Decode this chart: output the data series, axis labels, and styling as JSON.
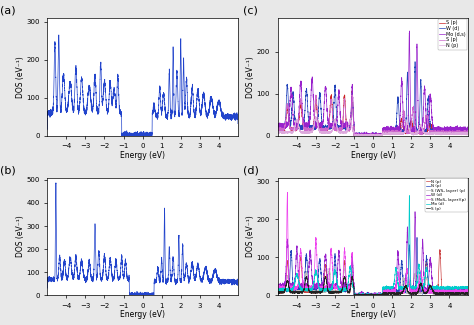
{
  "fig_width": 4.74,
  "fig_height": 3.25,
  "dpi": 100,
  "background_color": "#e8e8e8",
  "energy_range": [
    -5,
    5
  ],
  "panel_a": {
    "ylim": [
      0,
      310
    ],
    "yticks": [
      0,
      100,
      200,
      300
    ],
    "ylabel": "DOS (eV⁻¹)",
    "xlabel": "Energy (eV)",
    "line_color": "#2244cc",
    "line_color2": "#7799ee",
    "label": "(a)"
  },
  "panel_b": {
    "ylim": [
      0,
      510
    ],
    "yticks": [
      0,
      100,
      200,
      300,
      400,
      500
    ],
    "ylabel": "DOS (eV⁻¹)",
    "xlabel": "Energy (eV)",
    "line_color": "#2244cc",
    "line_color2": "#7799ee",
    "label": "(b)"
  },
  "panel_c": {
    "ylim": [
      0,
      280
    ],
    "yticks": [
      0,
      100,
      200
    ],
    "ylabel": "DOS (eV⁻¹)",
    "xlabel": "Energy (eV)",
    "label": "(c)",
    "legend_labels": [
      "S (p)",
      "W (d)",
      "Mo (d,s)",
      "S (p)",
      "N (p)"
    ],
    "legend_colors": [
      "#cc2222",
      "#2244bb",
      "#9922cc",
      "#cc66cc",
      "#ddaadd"
    ]
  },
  "panel_d": {
    "ylim": [
      0,
      310
    ],
    "yticks": [
      0,
      100,
      200,
      300
    ],
    "ylabel": "DOS (eV⁻¹)",
    "xlabel": "Energy (eV)",
    "label": "(d)",
    "legend_labels": [
      "N (p)",
      "N (p)",
      "S (WS₂ layer) (p)",
      "W (d)",
      "S (MoS₂ layer)(p)",
      "Mo (d)",
      "S (p)"
    ],
    "legend_colors": [
      "#cc4444",
      "#2244bb",
      "#bbbbbb",
      "#9922cc",
      "#ee44ee",
      "#00cccc",
      "#222222"
    ]
  }
}
